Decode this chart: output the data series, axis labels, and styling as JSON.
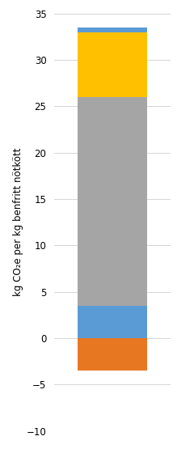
{
  "segments": [
    {
      "value": -3.5,
      "color": "#E87722"
    },
    {
      "value": 3.5,
      "color": "#5B9BD5"
    },
    {
      "value": 22.5,
      "color": "#A5A5A5"
    },
    {
      "value": 7.0,
      "color": "#FFC000"
    },
    {
      "value": 0.5,
      "color": "#5B9BD5"
    }
  ],
  "ylim": [
    -10,
    35
  ],
  "yticks": [
    -10,
    -5,
    0,
    5,
    10,
    15,
    20,
    25,
    30,
    35
  ],
  "ylabel": "kg CO₂e per kg benfritt nötkött",
  "background_color": "#ffffff",
  "bar_width": 0.6,
  "figsize": [
    2.4,
    5.55
  ],
  "dpi": 100,
  "grid_color": "#D0D0D0",
  "tick_fontsize": 8.5,
  "ylabel_fontsize": 8.5
}
